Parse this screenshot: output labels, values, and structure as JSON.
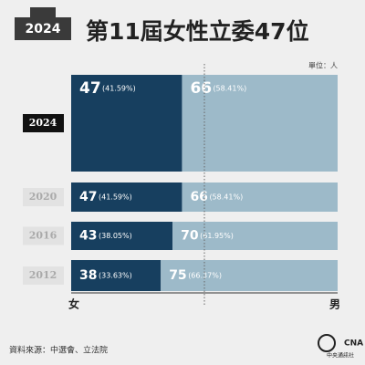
{
  "chart_data": {
    "type": "bar",
    "stacked_percent": true,
    "badge": "2024",
    "title": "第11屆女性立委47位",
    "unit": "單位：人",
    "categories": [
      "2024",
      "2020",
      "2016",
      "2012"
    ],
    "series": [
      {
        "name": "女",
        "color": "#173f5f",
        "values": [
          47,
          47,
          43,
          38
        ],
        "percent_labels": [
          "(41.59%)",
          "(41.59%)",
          "(38.05%)",
          "(33.63%)"
        ]
      },
      {
        "name": "男",
        "color": "#9dbac9",
        "values": [
          66,
          66,
          70,
          75
        ],
        "percent_labels": [
          "(58.41%)",
          "(58.41%)",
          "(61.95%)",
          "(66.37%)"
        ]
      }
    ],
    "source": "資料來源：中選會、立法院",
    "logo": "CNA",
    "logo_text": "中央通訊社"
  }
}
